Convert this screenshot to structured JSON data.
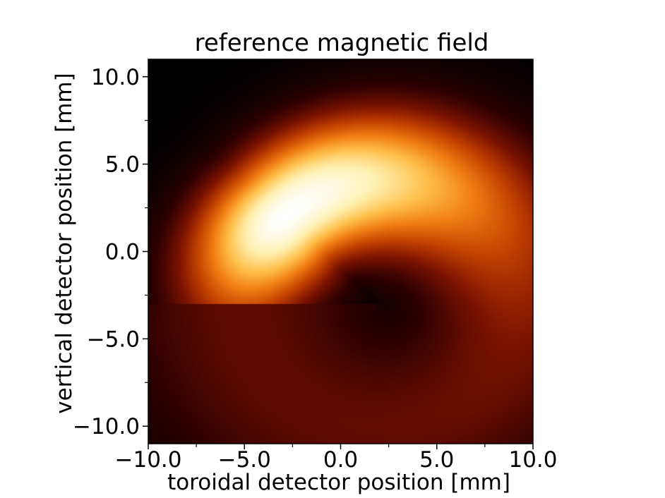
{
  "chart_data": {
    "type": "heatmap",
    "title": "reference magnetic field",
    "xlabel": "toroidal detector position [mm]",
    "ylabel": "vertical detector position [mm]",
    "xlim": [
      -10.0,
      10.0
    ],
    "ylim": [
      -11.0,
      11.0
    ],
    "x_ticks": [
      -10.0,
      -5.0,
      0.0,
      5.0,
      10.0
    ],
    "x_tick_labels": [
      "−10.0",
      "−5.0",
      "0.0",
      "5.0",
      "10.0"
    ],
    "x_minor_ticks": [
      -7.5,
      -2.5,
      2.5,
      7.5
    ],
    "y_ticks": [
      -10.0,
      -5.0,
      0.0,
      5.0,
      10.0
    ],
    "y_tick_labels": [
      "−10.0",
      "−5.0",
      "0.0",
      "5.0",
      "10.0"
    ],
    "y_minor_ticks": [
      -7.5,
      -2.5,
      2.5,
      7.5
    ],
    "colormap": "afmhot",
    "colormap_stops": [
      "#000000",
      "#2e0000",
      "#7a1200",
      "#c24000",
      "#f07c12",
      "#ffbf4a",
      "#fff0b0",
      "#ffffff"
    ],
    "intensity_description": "curved band of high field following an arc centered near (2, -3) mm with radius about 7 mm; peak near (-4, 3) mm",
    "arc_center": [
      2.0,
      -3.0
    ],
    "arc_radius": 7.0,
    "peak_location": [
      -4.0,
      3.0
    ]
  }
}
